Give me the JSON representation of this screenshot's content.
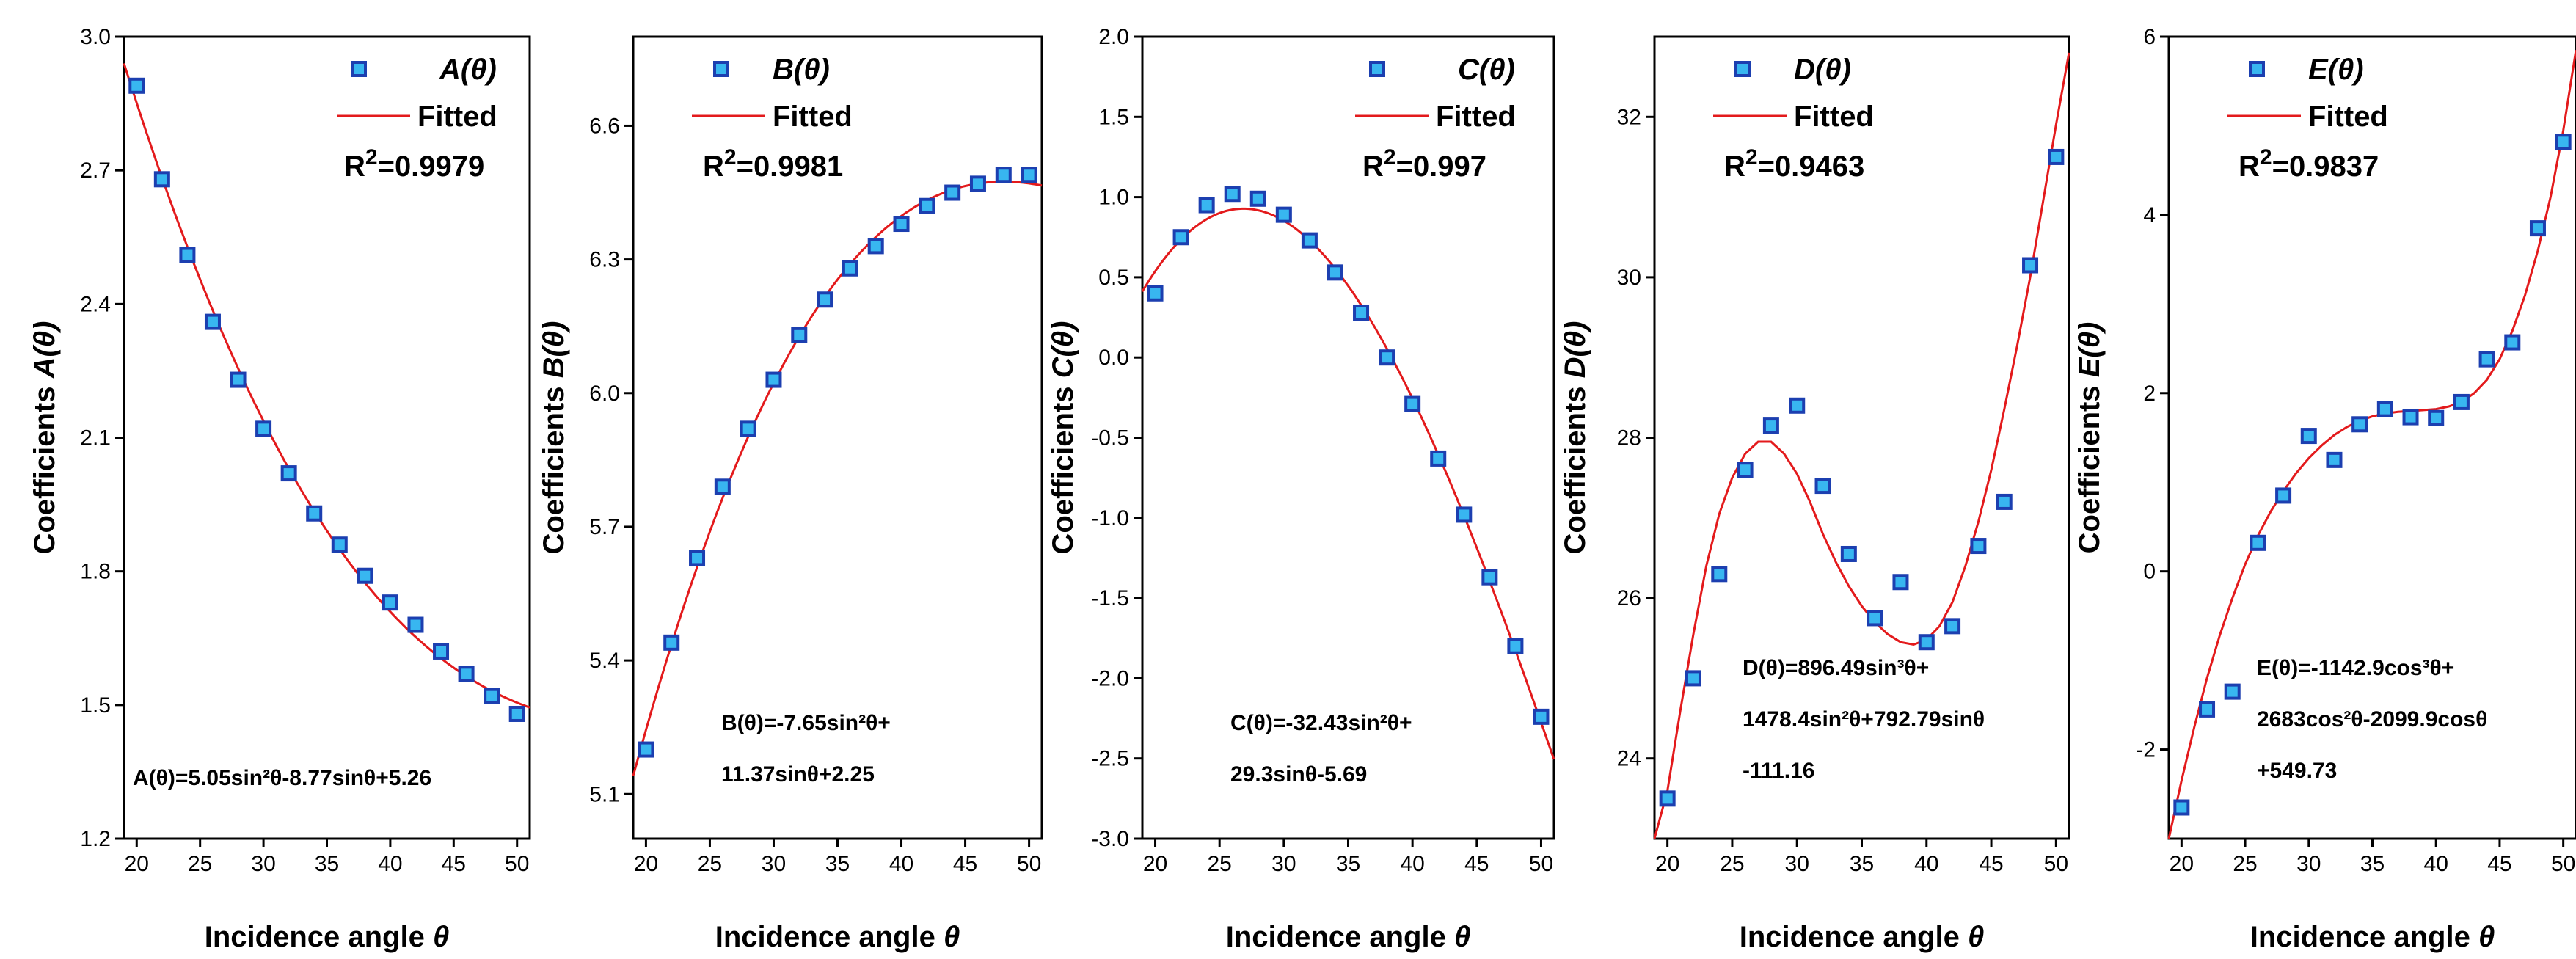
{
  "figure": {
    "xlabel_prefix": "Incidence angle ",
    "xlabel_symbol": "θ",
    "ylabel_prefix": "Coefficients ",
    "legend_fitted": "Fitted",
    "r2_prefix": "R",
    "r2_sup": "2",
    "colors": {
      "fit": "#e31a1c",
      "marker_fill": "#38b6f0",
      "marker_edge": "#1c3fb0"
    }
  },
  "chart_data": [
    {
      "type": "scatter",
      "name": "A(θ)",
      "ylabel_symbol": "A(θ)",
      "legend_marker": "A(θ)",
      "r2": "=0.9979",
      "equation_lines": [
        "A(θ)=5.05sin²θ-8.77sinθ+5.26"
      ],
      "xlim": [
        19,
        51
      ],
      "ylim": [
        1.2,
        3.0
      ],
      "xticks": [
        20,
        25,
        30,
        35,
        40,
        45,
        50
      ],
      "yticks": [
        1.2,
        1.5,
        1.8,
        2.1,
        2.4,
        2.7,
        3.0
      ],
      "ytick_labels": [
        "1.2",
        "1.5",
        "1.8",
        "2.1",
        "2.4",
        "2.7",
        "3.0"
      ],
      "x": [
        20,
        22,
        24,
        26,
        28,
        30,
        32,
        34,
        36,
        38,
        40,
        42,
        44,
        46,
        48,
        50
      ],
      "y": [
        2.89,
        2.68,
        2.51,
        2.36,
        2.23,
        2.12,
        2.02,
        1.93,
        1.86,
        1.79,
        1.73,
        1.68,
        1.62,
        1.57,
        1.52,
        1.48
      ],
      "fit": {
        "kind": "sinpoly",
        "coef": [
          5.26,
          -8.77,
          5.05
        ]
      },
      "legend_pos": "top-right",
      "equation_pos": "bottom"
    },
    {
      "type": "scatter",
      "name": "B(θ)",
      "ylabel_symbol": "B(θ)",
      "legend_marker": "B(θ)",
      "r2": "=0.9981",
      "equation_lines": [
        "B(θ)=-7.65sin²θ+",
        "11.37sinθ+2.25"
      ],
      "xlim": [
        19,
        51
      ],
      "ylim": [
        5.0,
        6.8
      ],
      "xticks": [
        20,
        25,
        30,
        35,
        40,
        45,
        50
      ],
      "yticks": [
        5.1,
        5.4,
        5.7,
        6.0,
        6.3,
        6.6
      ],
      "ytick_labels": [
        "5.1",
        "5.4",
        "5.7",
        "6.0",
        "6.3",
        "6.6"
      ],
      "x": [
        20,
        22,
        24,
        26,
        28,
        30,
        32,
        34,
        36,
        38,
        40,
        42,
        44,
        46,
        48,
        50
      ],
      "y": [
        5.2,
        5.44,
        5.63,
        5.79,
        5.92,
        6.03,
        6.13,
        6.21,
        6.28,
        6.33,
        6.38,
        6.42,
        6.45,
        6.47,
        6.49,
        6.49
      ],
      "fit": {
        "kind": "sinpoly",
        "coef": [
          2.25,
          11.37,
          -7.65
        ]
      },
      "legend_pos": "top-left",
      "equation_pos": "bottom"
    },
    {
      "type": "scatter",
      "name": "C(θ)",
      "ylabel_symbol": "C(θ)",
      "legend_marker": "C(θ)",
      "r2": "=0.997",
      "equation_lines": [
        "C(θ)=-32.43sin²θ+",
        "29.3sinθ-5.69"
      ],
      "xlim": [
        19,
        51
      ],
      "ylim": [
        -3.0,
        2.0
      ],
      "xticks": [
        20,
        25,
        30,
        35,
        40,
        45,
        50
      ],
      "yticks": [
        -3.0,
        -2.5,
        -2.0,
        -1.5,
        -1.0,
        -0.5,
        0.0,
        0.5,
        1.0,
        1.5,
        2.0
      ],
      "ytick_labels": [
        "-3.0",
        "-2.5",
        "-2.0",
        "-1.5",
        "-1.0",
        "-0.5",
        "0.0",
        "0.5",
        "1.0",
        "1.5",
        "2.0"
      ],
      "x": [
        20,
        22,
        24,
        26,
        28,
        30,
        32,
        34,
        36,
        38,
        40,
        42,
        44,
        46,
        48,
        50
      ],
      "y": [
        0.4,
        0.75,
        0.95,
        1.02,
        0.99,
        0.89,
        0.73,
        0.53,
        0.28,
        0.0,
        -0.29,
        -0.63,
        -0.98,
        -1.37,
        -1.8,
        -2.24
      ],
      "fit": {
        "kind": "sinpoly",
        "coef": [
          -5.69,
          29.3,
          -32.43
        ]
      },
      "legend_pos": "top-right",
      "equation_pos": "bottom"
    },
    {
      "type": "scatter",
      "name": "D(θ)",
      "ylabel_symbol": "D(θ)",
      "legend_marker": "D(θ)",
      "r2": "=0.9463",
      "equation_lines": [
        "D(θ)=896.49sin³θ+",
        "1478.4sin²θ+792.79sinθ",
        "-111.16"
      ],
      "xlim": [
        19,
        51
      ],
      "ylim": [
        23,
        33
      ],
      "xticks": [
        20,
        25,
        30,
        35,
        40,
        45,
        50
      ],
      "yticks": [
        24,
        26,
        28,
        30,
        32
      ],
      "ytick_labels": [
        "24",
        "26",
        "28",
        "30",
        "32"
      ],
      "x": [
        20,
        22,
        24,
        26,
        28,
        30,
        32,
        34,
        36,
        38,
        40,
        42,
        44,
        46,
        48,
        50
      ],
      "y": [
        23.5,
        25.0,
        26.3,
        27.6,
        28.15,
        28.4,
        27.4,
        26.55,
        25.75,
        26.2,
        25.45,
        25.65,
        26.65,
        27.2,
        30.15,
        31.5
      ],
      "fit": {
        "kind": "points",
        "x": [
          19,
          20,
          21,
          22,
          23,
          24,
          25,
          26,
          27,
          28,
          29,
          30,
          31,
          32,
          33,
          34,
          35,
          36,
          37,
          38,
          39,
          40,
          41,
          42,
          43,
          44,
          45,
          46,
          47,
          48,
          49,
          50,
          51
        ],
        "y": [
          22.8,
          23.6,
          24.6,
          25.55,
          26.4,
          27.05,
          27.5,
          27.8,
          27.95,
          27.95,
          27.8,
          27.55,
          27.2,
          26.8,
          26.45,
          26.15,
          25.9,
          25.7,
          25.55,
          25.45,
          25.42,
          25.48,
          25.65,
          25.95,
          26.4,
          26.95,
          27.6,
          28.35,
          29.15,
          30.0,
          30.95,
          31.9,
          32.8
        ]
      },
      "legend_pos": "top-left",
      "equation_pos": "bottom"
    },
    {
      "type": "scatter",
      "name": "E(θ)",
      "ylabel_symbol": "E(θ)",
      "legend_marker": "E(θ)",
      "r2": "=0.9837",
      "equation_lines": [
        "E(θ)=-1142.9cos³θ+",
        "2683cos²θ-2099.9cosθ",
        "+549.73"
      ],
      "xlim": [
        19,
        51
      ],
      "ylim": [
        -3,
        6
      ],
      "xticks": [
        20,
        25,
        30,
        35,
        40,
        45,
        50
      ],
      "yticks": [
        -2,
        0,
        2,
        4,
        6
      ],
      "ytick_labels": [
        "-2",
        "0",
        "2",
        "4",
        "6"
      ],
      "x": [
        20,
        22,
        24,
        26,
        28,
        30,
        32,
        34,
        36,
        38,
        40,
        42,
        44,
        46,
        48,
        50
      ],
      "y": [
        -2.65,
        -1.55,
        -1.35,
        0.32,
        0.85,
        1.52,
        1.25,
        1.65,
        1.82,
        1.73,
        1.72,
        1.9,
        2.38,
        2.57,
        3.85,
        4.82
      ],
      "fit": {
        "kind": "points",
        "x": [
          19,
          20,
          21,
          22,
          23,
          24,
          25,
          26,
          27,
          28,
          29,
          30,
          31,
          32,
          33,
          34,
          35,
          36,
          37,
          38,
          39,
          40,
          41,
          42,
          43,
          44,
          45,
          46,
          47,
          48,
          49,
          50,
          51
        ],
        "y": [
          -3.0,
          -2.35,
          -1.75,
          -1.2,
          -0.72,
          -0.3,
          0.08,
          0.4,
          0.67,
          0.9,
          1.1,
          1.27,
          1.41,
          1.53,
          1.62,
          1.69,
          1.74,
          1.77,
          1.79,
          1.8,
          1.81,
          1.82,
          1.85,
          1.9,
          2.0,
          2.15,
          2.38,
          2.7,
          3.1,
          3.6,
          4.2,
          4.95,
          5.85
        ]
      },
      "legend_pos": "top-left",
      "equation_pos": "bottom"
    }
  ]
}
